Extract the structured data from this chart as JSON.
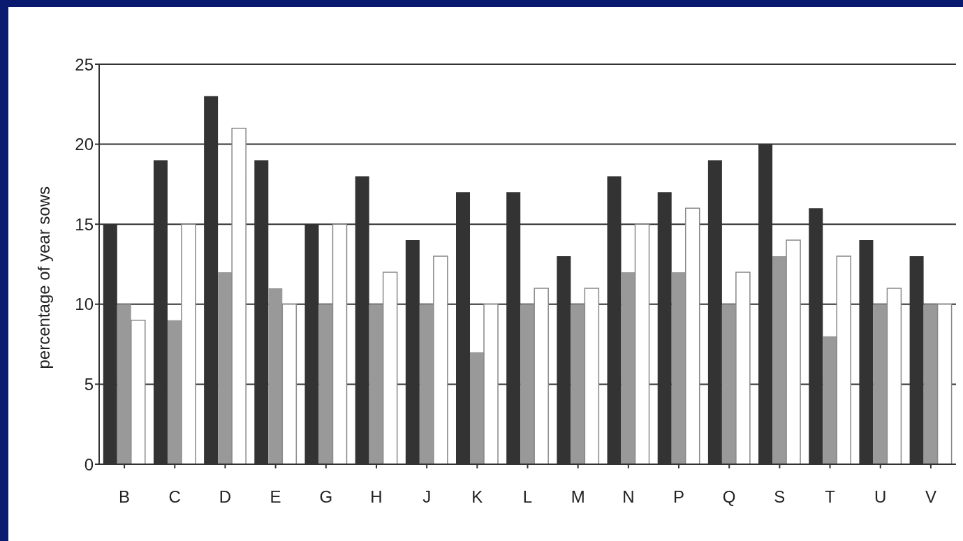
{
  "chart_data": {
    "type": "bar",
    "ylabel": "percentage of year sows",
    "categories": [
      "B",
      "C",
      "D",
      "E",
      "G",
      "H",
      "J",
      "K",
      "L",
      "M",
      "N",
      "P",
      "Q",
      "S",
      "T",
      "U",
      "V"
    ],
    "series": [
      {
        "color": "#333333",
        "values": [
          15,
          19,
          23,
          19,
          15,
          18,
          14,
          17,
          17,
          13,
          18,
          17,
          19,
          20,
          16,
          14,
          13
        ]
      },
      {
        "color": "#999999",
        "values": [
          10,
          9,
          12,
          11,
          10,
          10,
          10,
          7,
          10,
          10,
          12,
          12,
          10,
          13,
          8,
          10,
          10
        ]
      },
      {
        "color": "#ffffff",
        "values": [
          9,
          15,
          21,
          10,
          15,
          12,
          13,
          10,
          11,
          11,
          15,
          16,
          12,
          14,
          13,
          11,
          10
        ]
      }
    ],
    "ylim": [
      0,
      25
    ],
    "yticks": [
      0,
      5,
      10,
      15,
      20,
      25
    ],
    "grid": "y",
    "legend": false
  }
}
